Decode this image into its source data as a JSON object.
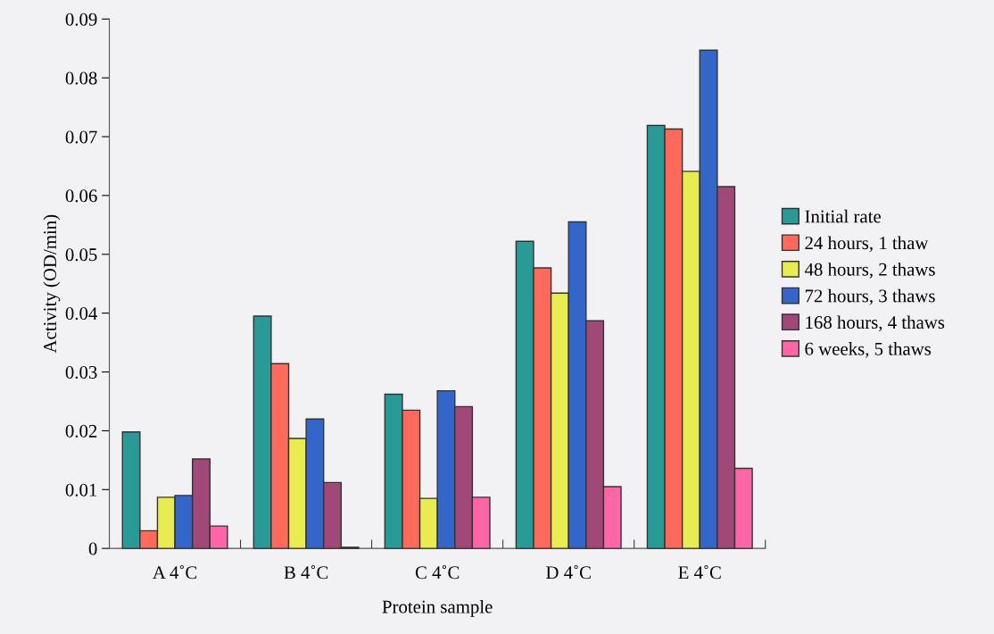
{
  "chart_data": {
    "type": "bar",
    "xlabel": "Protein sample",
    "ylabel": "Activity (OD/min)",
    "categories": [
      "A 4˚C",
      "B 4˚C",
      "C 4˚C",
      "D 4˚C",
      "E 4˚C"
    ],
    "series": [
      {
        "name": "Initial rate",
        "color": "#2a9a96",
        "values": [
          0.0198,
          0.0395,
          0.0262,
          0.0522,
          0.0719
        ]
      },
      {
        "name": "24 hours, 1 thaw",
        "color": "#ff6a5a",
        "values": [
          0.003,
          0.0314,
          0.0235,
          0.0477,
          0.0713
        ]
      },
      {
        "name": "48 hours, 2 thaws",
        "color": "#e8ec50",
        "values": [
          0.0087,
          0.0187,
          0.0085,
          0.0434,
          0.0641
        ]
      },
      {
        "name": "72 hours, 3 thaws",
        "color": "#3366c8",
        "values": [
          0.009,
          0.022,
          0.0268,
          0.0555,
          0.0847
        ]
      },
      {
        "name": "168 hours, 4 thaws",
        "color": "#a04878",
        "values": [
          0.0152,
          0.0112,
          0.0241,
          0.0387,
          0.0615
        ]
      },
      {
        "name": "6 weeks, 5 thaws",
        "color": "#ff66a8",
        "values": [
          0.0038,
          0.0002,
          0.0087,
          0.0105,
          0.0136
        ]
      }
    ],
    "ylim": [
      0,
      0.09
    ],
    "yticks": [
      0,
      {
        "value": 0.01,
        "label": "0.01"
      },
      {
        "value": 0.02,
        "label": "0.02"
      },
      {
        "value": 0.03,
        "label": "0.03"
      },
      {
        "value": 0.04,
        "label": "0.04"
      },
      {
        "value": 0.05,
        "label": "0.05"
      },
      {
        "value": 0.06,
        "label": "0.06"
      },
      {
        "value": 0.07,
        "label": "0.07"
      },
      {
        "value": 0.08,
        "label": "0.08"
      },
      {
        "value": 0.09,
        "label": "0.09"
      }
    ],
    "grid": false,
    "legend": "right"
  }
}
